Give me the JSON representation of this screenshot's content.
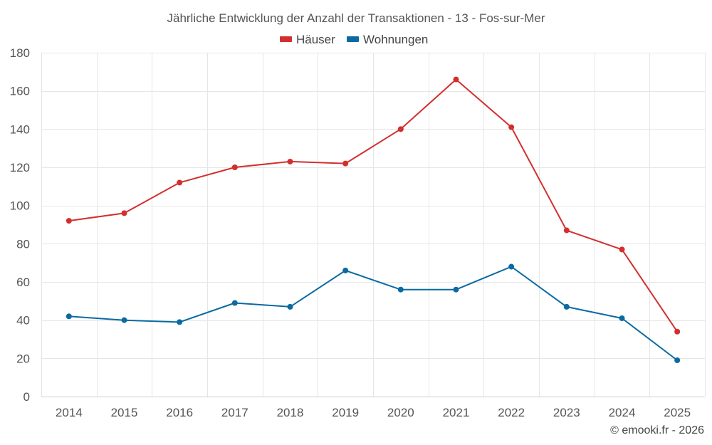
{
  "chart_data": {
    "type": "line",
    "title": "Jährliche Entwicklung der Anzahl der Transaktionen - 13 - Fos-sur-Mer",
    "categories": [
      "2014",
      "2015",
      "2016",
      "2017",
      "2018",
      "2019",
      "2020",
      "2021",
      "2022",
      "2023",
      "2024",
      "2025"
    ],
    "series": [
      {
        "name": "Häuser",
        "color": "#d32f2f",
        "values": [
          92,
          96,
          112,
          120,
          123,
          122,
          140,
          166,
          141,
          87,
          77,
          34
        ]
      },
      {
        "name": "Wohnungen",
        "color": "#0a6aa1",
        "values": [
          42,
          40,
          39,
          49,
          47,
          66,
          56,
          56,
          68,
          47,
          41,
          19
        ]
      }
    ],
    "ylim": [
      0,
      180
    ],
    "yticks": [
      "0",
      "20",
      "40",
      "60",
      "80",
      "100",
      "120",
      "140",
      "160",
      "180"
    ],
    "xlabel": "",
    "ylabel": "",
    "grid": true,
    "legend_position": "top-center"
  },
  "credit": "© emooki.fr - 2026"
}
